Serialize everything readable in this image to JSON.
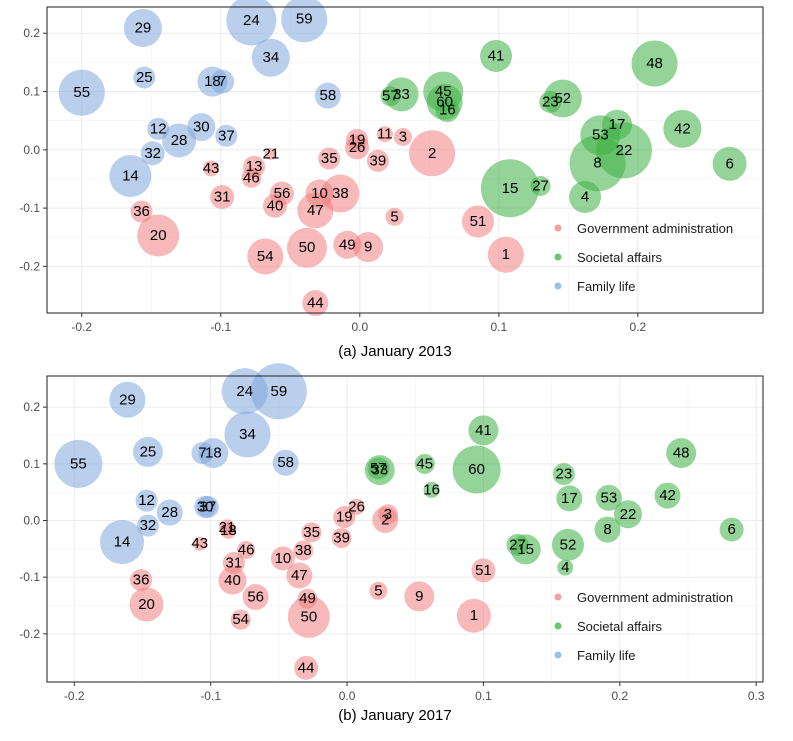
{
  "colors": {
    "Government administration": "#f08080",
    "Societal affairs": "#3cb043",
    "Family life": "#7fa7dc"
  },
  "chart_data": [
    {
      "type": "scatter",
      "caption": "(a) January 2013",
      "xlim": [
        -0.225,
        0.29
      ],
      "ylim": [
        -0.28,
        0.245
      ],
      "xticks": [
        -0.2,
        -0.1,
        0.0,
        0.1,
        0.2
      ],
      "xtick_labels": [
        "-0.2",
        "-0.1",
        "0.0",
        "0.1",
        "0.2"
      ],
      "yticks": [
        -0.2,
        -0.1,
        0.0,
        0.1,
        0.2
      ],
      "ytick_labels": [
        "-0.2",
        "-0.1",
        "0.0",
        "0.1",
        "0.2"
      ],
      "legend": [
        "Government administration",
        "Societal affairs",
        "Family life"
      ],
      "legend_position": "bottom-right",
      "grid": true,
      "points": [
        {
          "id": "29",
          "x": -0.156,
          "y": 0.209,
          "size": 19,
          "group": "Family life"
        },
        {
          "id": "24",
          "x": -0.078,
          "y": 0.222,
          "size": 25,
          "group": "Family life"
        },
        {
          "id": "59",
          "x": -0.04,
          "y": 0.224,
          "size": 23,
          "group": "Family life"
        },
        {
          "id": "34",
          "x": -0.064,
          "y": 0.158,
          "size": 19,
          "group": "Family life"
        },
        {
          "id": "25",
          "x": -0.155,
          "y": 0.124,
          "size": 11,
          "group": "Family life"
        },
        {
          "id": "18",
          "x": -0.106,
          "y": 0.117,
          "size": 15,
          "group": "Family life"
        },
        {
          "id": "7",
          "x": -0.099,
          "y": 0.117,
          "size": 12,
          "group": "Family life"
        },
        {
          "id": "55",
          "x": -0.2,
          "y": 0.098,
          "size": 23,
          "group": "Family life"
        },
        {
          "id": "58",
          "x": -0.023,
          "y": 0.093,
          "size": 13,
          "group": "Family life"
        },
        {
          "id": "12",
          "x": -0.145,
          "y": 0.036,
          "size": 11,
          "group": "Family life"
        },
        {
          "id": "30",
          "x": -0.114,
          "y": 0.039,
          "size": 14,
          "group": "Family life"
        },
        {
          "id": "28",
          "x": -0.13,
          "y": 0.016,
          "size": 17,
          "group": "Family life"
        },
        {
          "id": "37",
          "x": -0.096,
          "y": 0.024,
          "size": 11,
          "group": "Family life"
        },
        {
          "id": "32",
          "x": -0.149,
          "y": -0.006,
          "size": 12,
          "group": "Family life"
        },
        {
          "id": "14",
          "x": -0.165,
          "y": -0.045,
          "size": 21,
          "group": "Family life"
        },
        {
          "id": "41",
          "x": 0.098,
          "y": 0.161,
          "size": 16,
          "group": "Societal affairs"
        },
        {
          "id": "48",
          "x": 0.212,
          "y": 0.148,
          "size": 23,
          "group": "Societal affairs"
        },
        {
          "id": "57",
          "x": 0.022,
          "y": 0.092,
          "size": 10,
          "group": "Societal affairs"
        },
        {
          "id": "33",
          "x": 0.03,
          "y": 0.095,
          "size": 17,
          "group": "Societal affairs"
        },
        {
          "id": "45",
          "x": 0.06,
          "y": 0.1,
          "size": 20,
          "group": "Societal affairs"
        },
        {
          "id": "60",
          "x": 0.061,
          "y": 0.082,
          "size": 18,
          "group": "Societal affairs"
        },
        {
          "id": "16",
          "x": 0.063,
          "y": 0.068,
          "size": 12,
          "group": "Societal affairs"
        },
        {
          "id": "23",
          "x": 0.137,
          "y": 0.082,
          "size": 11,
          "group": "Societal affairs"
        },
        {
          "id": "52",
          "x": 0.146,
          "y": 0.088,
          "size": 19,
          "group": "Societal affairs"
        },
        {
          "id": "17",
          "x": 0.185,
          "y": 0.043,
          "size": 15,
          "group": "Societal affairs"
        },
        {
          "id": "53",
          "x": 0.173,
          "y": 0.025,
          "size": 20,
          "group": "Societal affairs"
        },
        {
          "id": "42",
          "x": 0.232,
          "y": 0.036,
          "size": 19,
          "group": "Societal affairs"
        },
        {
          "id": "22",
          "x": 0.19,
          "y": -0.001,
          "size": 28,
          "group": "Societal affairs"
        },
        {
          "id": "8",
          "x": 0.171,
          "y": -0.023,
          "size": 28,
          "group": "Societal affairs"
        },
        {
          "id": "6",
          "x": 0.266,
          "y": -0.024,
          "size": 17,
          "group": "Societal affairs"
        },
        {
          "id": "27",
          "x": 0.13,
          "y": -0.062,
          "size": 10,
          "group": "Societal affairs"
        },
        {
          "id": "15",
          "x": 0.108,
          "y": -0.066,
          "size": 29,
          "group": "Societal affairs"
        },
        {
          "id": "4",
          "x": 0.162,
          "y": -0.081,
          "size": 16,
          "group": "Societal affairs"
        },
        {
          "id": "19",
          "x": -0.002,
          "y": 0.017,
          "size": 11,
          "group": "Government administration"
        },
        {
          "id": "26",
          "x": -0.002,
          "y": 0.004,
          "size": 12,
          "group": "Government administration"
        },
        {
          "id": "11",
          "x": 0.018,
          "y": 0.027,
          "size": 8,
          "group": "Government administration"
        },
        {
          "id": "3",
          "x": 0.031,
          "y": 0.022,
          "size": 9,
          "group": "Government administration"
        },
        {
          "id": "2",
          "x": 0.052,
          "y": -0.006,
          "size": 23,
          "group": "Government administration"
        },
        {
          "id": "21",
          "x": -0.064,
          "y": -0.007,
          "size": 6,
          "group": "Government administration"
        },
        {
          "id": "35",
          "x": -0.022,
          "y": -0.015,
          "size": 11,
          "group": "Government administration"
        },
        {
          "id": "39",
          "x": 0.013,
          "y": -0.019,
          "size": 11,
          "group": "Government administration"
        },
        {
          "id": "13",
          "x": -0.076,
          "y": -0.029,
          "size": 11,
          "group": "Government administration"
        },
        {
          "id": "43",
          "x": -0.107,
          "y": -0.032,
          "size": 8,
          "group": "Government administration"
        },
        {
          "id": "46",
          "x": -0.078,
          "y": -0.048,
          "size": 10,
          "group": "Government administration"
        },
        {
          "id": "31",
          "x": -0.099,
          "y": -0.081,
          "size": 12,
          "group": "Government administration"
        },
        {
          "id": "56",
          "x": -0.056,
          "y": -0.075,
          "size": 12,
          "group": "Government administration"
        },
        {
          "id": "40",
          "x": -0.061,
          "y": -0.096,
          "size": 12,
          "group": "Government administration"
        },
        {
          "id": "10",
          "x": -0.029,
          "y": -0.075,
          "size": 14,
          "group": "Government administration"
        },
        {
          "id": "38",
          "x": -0.014,
          "y": -0.075,
          "size": 19,
          "group": "Government administration"
        },
        {
          "id": "47",
          "x": -0.032,
          "y": -0.104,
          "size": 18,
          "group": "Government administration"
        },
        {
          "id": "36",
          "x": -0.157,
          "y": -0.106,
          "size": 11,
          "group": "Government administration"
        },
        {
          "id": "5",
          "x": 0.025,
          "y": -0.115,
          "size": 9,
          "group": "Government administration"
        },
        {
          "id": "51",
          "x": 0.085,
          "y": -0.123,
          "size": 16,
          "group": "Government administration"
        },
        {
          "id": "20",
          "x": -0.145,
          "y": -0.147,
          "size": 21,
          "group": "Government administration"
        },
        {
          "id": "49",
          "x": -0.009,
          "y": -0.163,
          "size": 14,
          "group": "Government administration"
        },
        {
          "id": "9",
          "x": 0.006,
          "y": -0.167,
          "size": 15,
          "group": "Government administration"
        },
        {
          "id": "50",
          "x": -0.038,
          "y": -0.168,
          "size": 20,
          "group": "Government administration"
        },
        {
          "id": "54",
          "x": -0.068,
          "y": -0.183,
          "size": 18,
          "group": "Government administration"
        },
        {
          "id": "1",
          "x": 0.105,
          "y": -0.18,
          "size": 18,
          "group": "Government administration"
        },
        {
          "id": "44",
          "x": -0.032,
          "y": -0.263,
          "size": 13,
          "group": "Government administration"
        }
      ]
    },
    {
      "type": "scatter",
      "caption": "(b) January 2017",
      "xlim": [
        -0.22,
        0.305
      ],
      "ylim": [
        -0.285,
        0.255
      ],
      "xticks": [
        -0.2,
        -0.1,
        0.0,
        0.1,
        0.2,
        0.3
      ],
      "xtick_labels": [
        "-0.2",
        "-0.1",
        "0.0",
        "0.1",
        "0.2",
        "0.3"
      ],
      "yticks": [
        -0.2,
        -0.1,
        0.0,
        0.1,
        0.2
      ],
      "ytick_labels": [
        "-0.2",
        "-0.1",
        "0.0",
        "0.1",
        "0.2"
      ],
      "legend": [
        "Government administration",
        "Societal affairs",
        "Family life"
      ],
      "legend_position": "bottom-right",
      "grid": true,
      "points": [
        {
          "id": "29",
          "x": -0.161,
          "y": 0.213,
          "size": 18,
          "group": "Family life"
        },
        {
          "id": "24",
          "x": -0.075,
          "y": 0.228,
          "size": 23,
          "group": "Family life"
        },
        {
          "id": "59",
          "x": -0.05,
          "y": 0.228,
          "size": 28,
          "group": "Family life"
        },
        {
          "id": "34",
          "x": -0.073,
          "y": 0.152,
          "size": 23,
          "group": "Family life"
        },
        {
          "id": "25",
          "x": -0.146,
          "y": 0.121,
          "size": 15,
          "group": "Family life"
        },
        {
          "id": "7",
          "x": -0.106,
          "y": 0.119,
          "size": 11,
          "group": "Family life"
        },
        {
          "id": "18",
          "x": -0.098,
          "y": 0.119,
          "size": 15,
          "group": "Family life"
        },
        {
          "id": "55",
          "x": -0.197,
          "y": 0.1,
          "size": 24,
          "group": "Family life"
        },
        {
          "id": "58",
          "x": -0.045,
          "y": 0.102,
          "size": 13,
          "group": "Family life"
        },
        {
          "id": "12",
          "x": -0.147,
          "y": 0.035,
          "size": 11,
          "group": "Family life"
        },
        {
          "id": "30",
          "x": -0.104,
          "y": 0.024,
          "size": 11,
          "group": "Family life"
        },
        {
          "id": "37",
          "x": -0.102,
          "y": 0.024,
          "size": 11,
          "group": "Family life"
        },
        {
          "id": "28",
          "x": -0.13,
          "y": 0.014,
          "size": 13,
          "group": "Family life"
        },
        {
          "id": "32",
          "x": -0.146,
          "y": -0.009,
          "size": 11,
          "group": "Family life"
        },
        {
          "id": "14",
          "x": -0.165,
          "y": -0.038,
          "size": 22,
          "group": "Family life"
        },
        {
          "id": "41",
          "x": 0.1,
          "y": 0.159,
          "size": 15,
          "group": "Societal affairs"
        },
        {
          "id": "48",
          "x": 0.245,
          "y": 0.119,
          "size": 15,
          "group": "Societal affairs"
        },
        {
          "id": "57",
          "x": 0.023,
          "y": 0.092,
          "size": 11,
          "group": "Societal affairs"
        },
        {
          "id": "33",
          "x": 0.024,
          "y": 0.089,
          "size": 15,
          "group": "Societal affairs"
        },
        {
          "id": "45",
          "x": 0.057,
          "y": 0.1,
          "size": 10,
          "group": "Societal affairs"
        },
        {
          "id": "60",
          "x": 0.095,
          "y": 0.09,
          "size": 24,
          "group": "Societal affairs"
        },
        {
          "id": "16",
          "x": 0.062,
          "y": 0.054,
          "size": 8,
          "group": "Societal affairs"
        },
        {
          "id": "23",
          "x": 0.159,
          "y": 0.082,
          "size": 11,
          "group": "Societal affairs"
        },
        {
          "id": "17",
          "x": 0.163,
          "y": 0.039,
          "size": 13,
          "group": "Societal affairs"
        },
        {
          "id": "53",
          "x": 0.192,
          "y": 0.04,
          "size": 13,
          "group": "Societal affairs"
        },
        {
          "id": "42",
          "x": 0.235,
          "y": 0.044,
          "size": 13,
          "group": "Societal affairs"
        },
        {
          "id": "22",
          "x": 0.206,
          "y": 0.011,
          "size": 14,
          "group": "Societal affairs"
        },
        {
          "id": "8",
          "x": 0.191,
          "y": -0.016,
          "size": 13,
          "group": "Societal affairs"
        },
        {
          "id": "6",
          "x": 0.282,
          "y": -0.016,
          "size": 12,
          "group": "Societal affairs"
        },
        {
          "id": "27",
          "x": 0.125,
          "y": -0.043,
          "size": 11,
          "group": "Societal affairs"
        },
        {
          "id": "15",
          "x": 0.131,
          "y": -0.051,
          "size": 15,
          "group": "Societal affairs"
        },
        {
          "id": "52",
          "x": 0.162,
          "y": -0.043,
          "size": 16,
          "group": "Societal affairs"
        },
        {
          "id": "4",
          "x": 0.16,
          "y": -0.083,
          "size": 8,
          "group": "Societal affairs"
        },
        {
          "id": "26",
          "x": 0.007,
          "y": 0.024,
          "size": 8,
          "group": "Government administration"
        },
        {
          "id": "19",
          "x": -0.002,
          "y": 0.006,
          "size": 11,
          "group": "Government administration"
        },
        {
          "id": "3",
          "x": 0.03,
          "y": 0.011,
          "size": 10,
          "group": "Government administration"
        },
        {
          "id": "2",
          "x": 0.028,
          "y": 0.001,
          "size": 13,
          "group": "Government administration"
        },
        {
          "id": "21",
          "x": -0.088,
          "y": -0.012,
          "size": 8,
          "group": "Government administration"
        },
        {
          "id": "18",
          "x": -0.087,
          "y": -0.018,
          "size": 8,
          "group": "Government administration"
        },
        {
          "id": "35",
          "x": -0.026,
          "y": -0.021,
          "size": 10,
          "group": "Government administration"
        },
        {
          "id": "39",
          "x": -0.004,
          "y": -0.031,
          "size": 10,
          "group": "Government administration"
        },
        {
          "id": "43",
          "x": -0.108,
          "y": -0.041,
          "size": 7,
          "group": "Government administration"
        },
        {
          "id": "46",
          "x": -0.074,
          "y": -0.052,
          "size": 9,
          "group": "Government administration"
        },
        {
          "id": "38",
          "x": -0.032,
          "y": -0.053,
          "size": 10,
          "group": "Government administration"
        },
        {
          "id": "10",
          "x": -0.047,
          "y": -0.067,
          "size": 12,
          "group": "Government administration"
        },
        {
          "id": "31",
          "x": -0.083,
          "y": -0.075,
          "size": 11,
          "group": "Government administration"
        },
        {
          "id": "47",
          "x": -0.035,
          "y": -0.097,
          "size": 13,
          "group": "Government administration"
        },
        {
          "id": "36",
          "x": -0.151,
          "y": -0.105,
          "size": 11,
          "group": "Government administration"
        },
        {
          "id": "40",
          "x": -0.084,
          "y": -0.106,
          "size": 14,
          "group": "Government administration"
        },
        {
          "id": "5",
          "x": 0.023,
          "y": -0.124,
          "size": 9,
          "group": "Government administration"
        },
        {
          "id": "56",
          "x": -0.067,
          "y": -0.135,
          "size": 13,
          "group": "Government administration"
        },
        {
          "id": "9",
          "x": 0.053,
          "y": -0.134,
          "size": 15,
          "group": "Government administration"
        },
        {
          "id": "51",
          "x": 0.1,
          "y": -0.088,
          "size": 12,
          "group": "Government administration"
        },
        {
          "id": "49",
          "x": -0.029,
          "y": -0.138,
          "size": 10,
          "group": "Government administration"
        },
        {
          "id": "20",
          "x": -0.147,
          "y": -0.148,
          "size": 17,
          "group": "Government administration"
        },
        {
          "id": "50",
          "x": -0.028,
          "y": -0.17,
          "size": 21,
          "group": "Government administration"
        },
        {
          "id": "54",
          "x": -0.078,
          "y": -0.175,
          "size": 10,
          "group": "Government administration"
        },
        {
          "id": "1",
          "x": 0.093,
          "y": -0.168,
          "size": 17,
          "group": "Government administration"
        },
        {
          "id": "44",
          "x": -0.03,
          "y": -0.26,
          "size": 12,
          "group": "Government administration"
        }
      ]
    }
  ]
}
